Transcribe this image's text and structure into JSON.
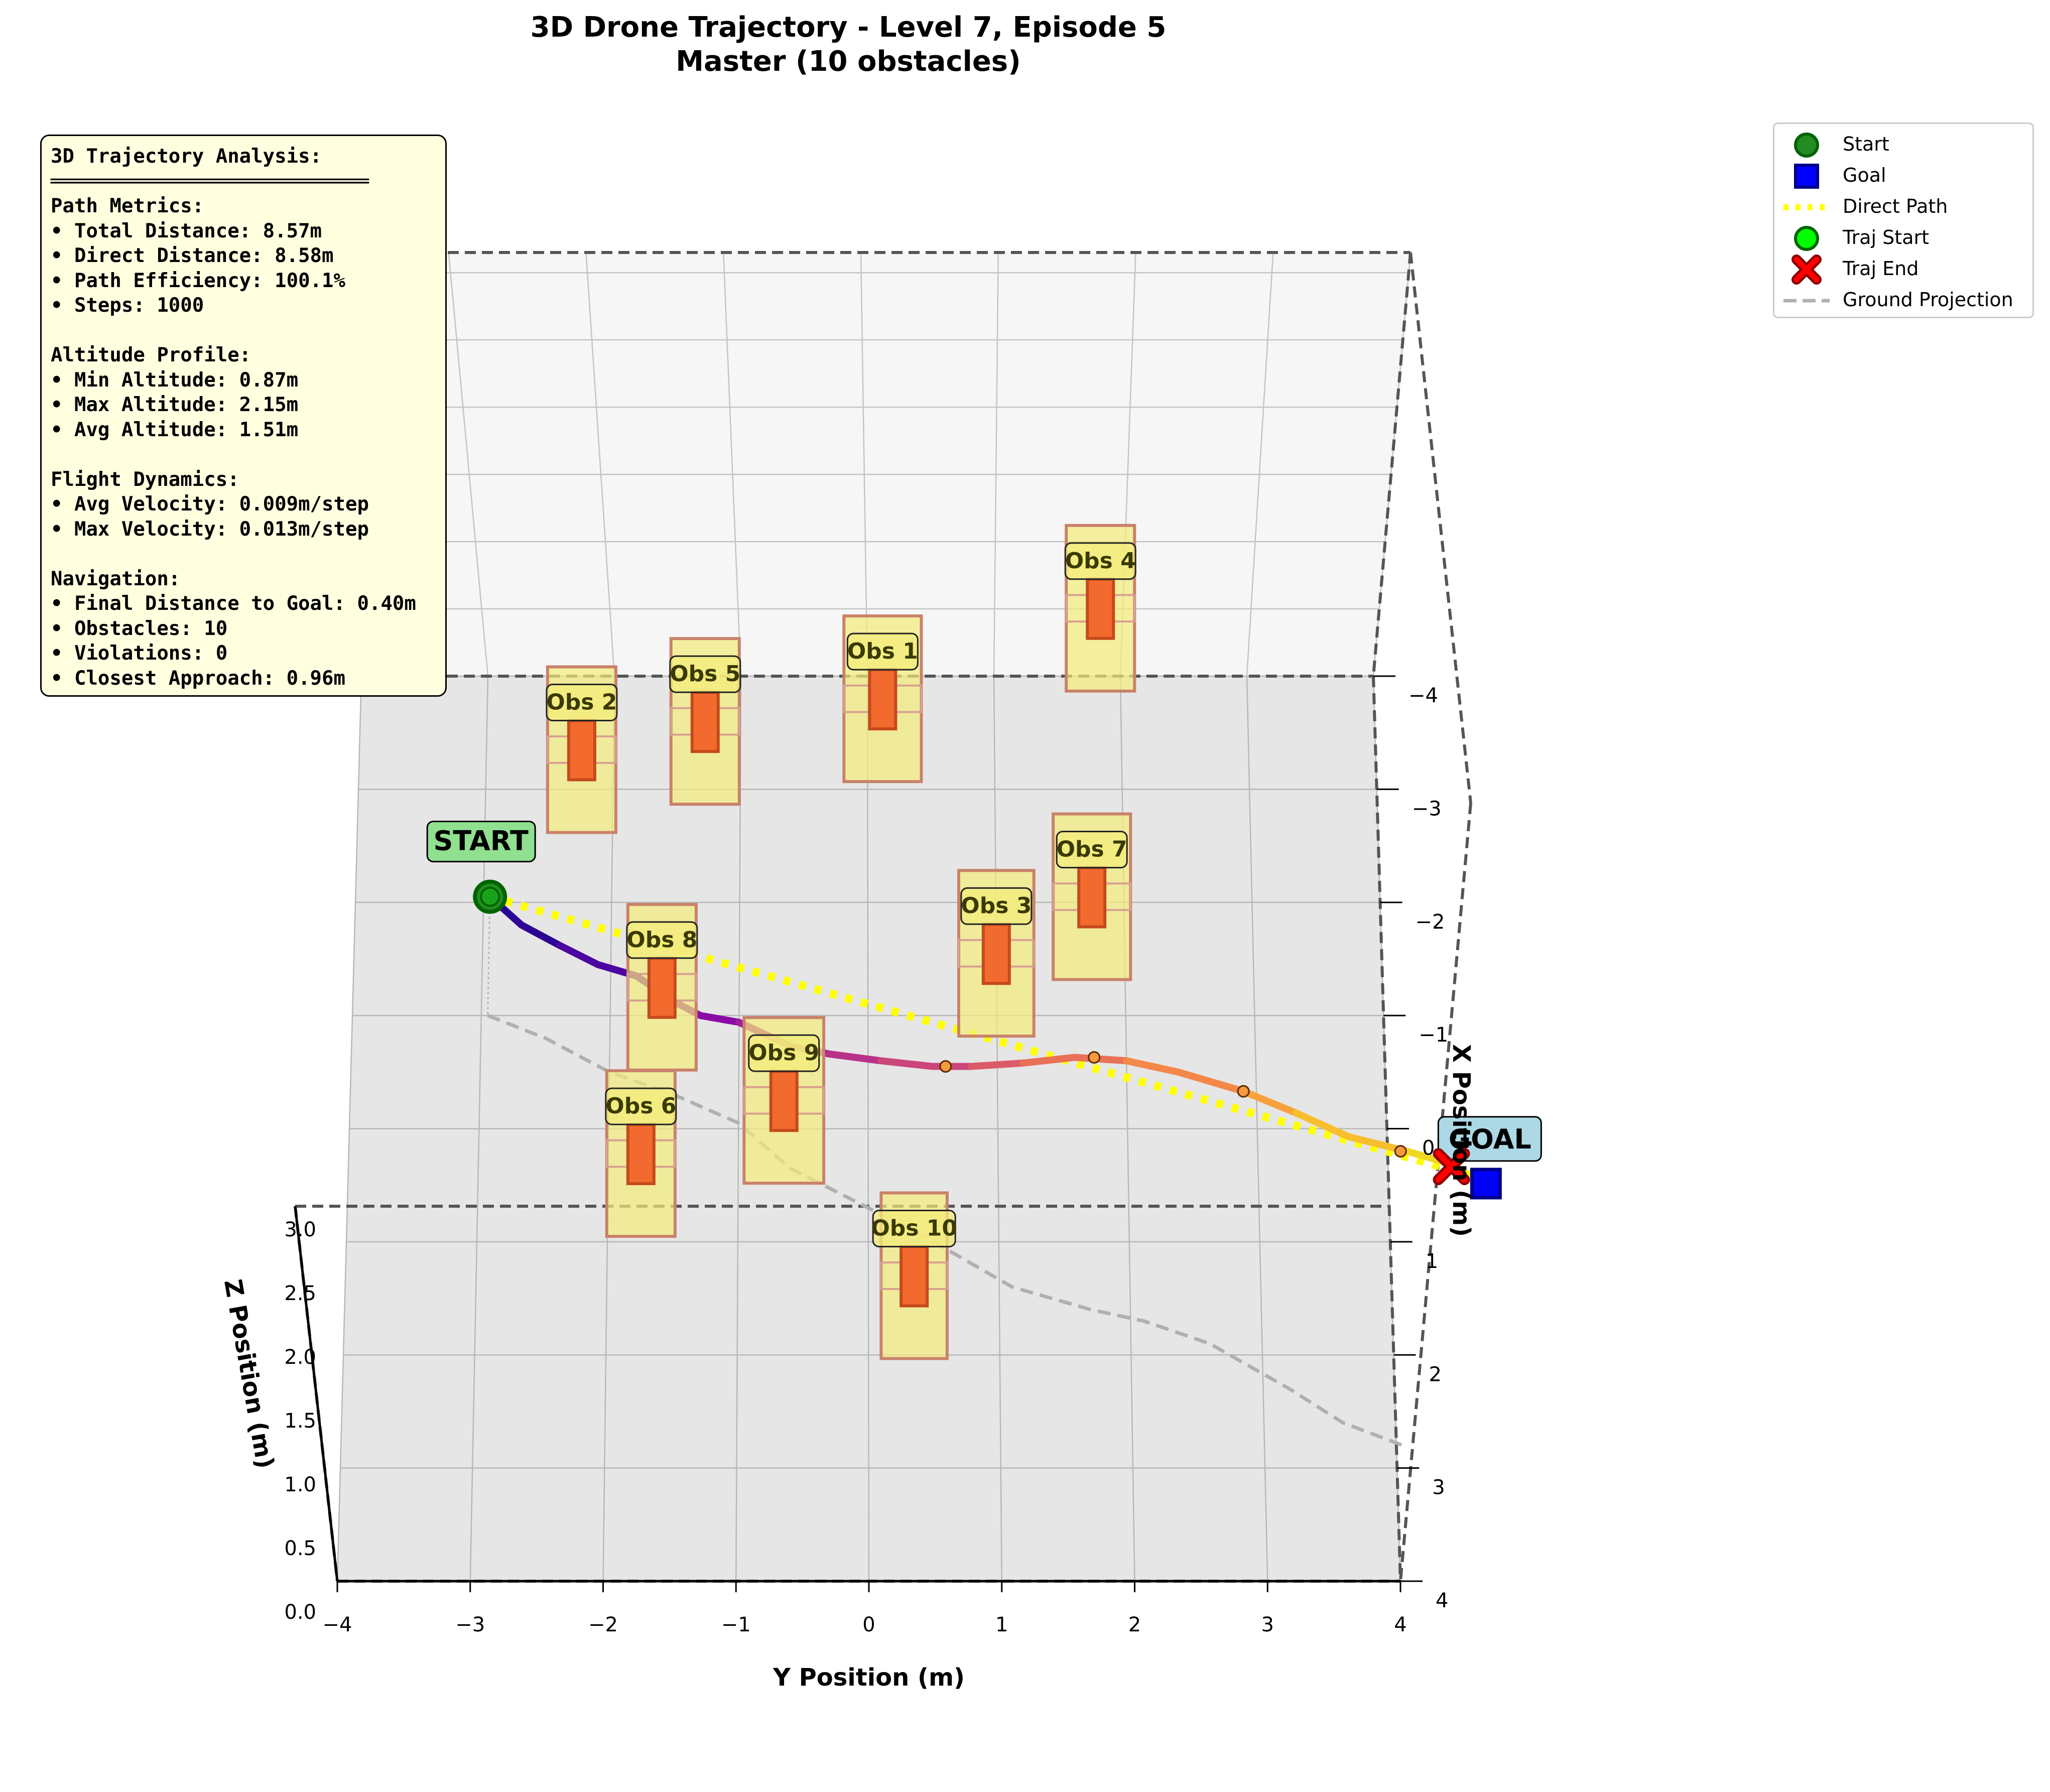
{
  "title_line1": "3D Drone Trajectory - Level 7, Episode 5",
  "title_line2": "Master (10 obstacles)",
  "chart_data": {
    "type": "3d-trajectory",
    "xlabel": "Y Position (m)",
    "ylabel": "X Position (m)",
    "zlabel": "Z Position (m)",
    "y_ticks": [
      "−4",
      "−3",
      "−2",
      "−1",
      "0",
      "1",
      "2",
      "3",
      "4"
    ],
    "x_ticks": [
      "−4",
      "−3",
      "−2",
      "−1",
      "0",
      "1",
      "2",
      "3",
      "4"
    ],
    "z_ticks": [
      "0.0",
      "0.5",
      "1.0",
      "1.5",
      "2.0",
      "2.5",
      "3.0"
    ],
    "y_range": [
      -4,
      4
    ],
    "x_range": [
      -4,
      4
    ],
    "z_range": [
      0,
      3
    ],
    "start_label": "START",
    "goal_label": "GOAL",
    "start": {
      "y": -2.95,
      "x": -2.05
    },
    "goal": {
      "y": 4.75,
      "x": 0.45
    },
    "trajectory": [
      {
        "y": -2.95,
        "x": -2.05
      },
      {
        "y": -2.7,
        "x": -1.8
      },
      {
        "y": -2.4,
        "x": -1.62
      },
      {
        "y": -2.1,
        "x": -1.45
      },
      {
        "y": -1.8,
        "x": -1.35
      },
      {
        "y": -1.5,
        "x": -1.12
      },
      {
        "y": -1.3,
        "x": -1.0
      },
      {
        "y": -1.0,
        "x": -0.94
      },
      {
        "y": -0.6,
        "x": -0.73
      },
      {
        "y": -0.3,
        "x": -0.66
      },
      {
        "y": 0.1,
        "x": -0.6
      },
      {
        "y": 0.5,
        "x": -0.55
      },
      {
        "y": 0.8,
        "x": -0.55
      },
      {
        "y": 1.2,
        "x": -0.58
      },
      {
        "y": 1.6,
        "x": -0.63
      },
      {
        "y": 2.0,
        "x": -0.6
      },
      {
        "y": 2.4,
        "x": -0.5
      },
      {
        "y": 2.9,
        "x": -0.33
      },
      {
        "y": 3.3,
        "x": -0.14
      },
      {
        "y": 3.7,
        "x": 0.07
      },
      {
        "y": 4.15,
        "x": 0.2
      },
      {
        "y": 4.45,
        "x": 0.3
      }
    ],
    "ground_projection": [
      {
        "y": -2.95,
        "x": -1.0
      },
      {
        "y": -2.5,
        "x": -0.8
      },
      {
        "y": -2.0,
        "x": -0.5
      },
      {
        "y": -1.5,
        "x": -0.3
      },
      {
        "y": -1.0,
        "x": -0.05
      },
      {
        "y": -0.6,
        "x": 0.35
      },
      {
        "y": 0.0,
        "x": 0.7
      },
      {
        "y": 0.5,
        "x": 1.0
      },
      {
        "y": 1.1,
        "x": 1.4
      },
      {
        "y": 1.7,
        "x": 1.6
      },
      {
        "y": 2.1,
        "x": 1.7
      },
      {
        "y": 2.6,
        "x": 1.9
      },
      {
        "y": 3.2,
        "x": 2.3
      },
      {
        "y": 3.6,
        "x": 2.6
      },
      {
        "y": 4.05,
        "x": 2.8
      }
    ],
    "markers": [
      {
        "y": 0.6,
        "x": -0.55
      },
      {
        "y": 1.75,
        "x": -0.63
      },
      {
        "y": 2.9,
        "x": -0.33
      },
      {
        "y": 4.1,
        "x": 0.2
      }
    ],
    "obstacles": [
      {
        "name": "Obs 1",
        "y": 0.12,
        "x": -3.8,
        "half_width": 0.34,
        "half_depth": 0.8
      },
      {
        "name": "Obs 2",
        "y": -2.25,
        "x": -3.35,
        "half_width": 0.3,
        "half_depth": 0.7
      },
      {
        "name": "Obs 3",
        "y": 1.0,
        "x": -1.55,
        "half_width": 0.33,
        "half_depth": 0.8
      },
      {
        "name": "Obs 4",
        "y": 1.85,
        "x": -4.6,
        "half_width": 0.3,
        "half_depth": 0.75
      },
      {
        "name": "Obs 5",
        "y": -1.28,
        "x": -3.6,
        "half_width": 0.3,
        "half_depth": 0.72
      },
      {
        "name": "Obs 6",
        "y": -1.75,
        "x": 0.22,
        "half_width": 0.3,
        "half_depth": 0.7
      },
      {
        "name": "Obs 7",
        "y": 1.75,
        "x": -2.05,
        "half_width": 0.34,
        "half_depth": 0.8
      },
      {
        "name": "Obs 8",
        "y": -1.6,
        "x": -1.25,
        "half_width": 0.3,
        "half_depth": 0.72
      },
      {
        "name": "Obs 9",
        "y": -0.65,
        "x": -0.25,
        "half_width": 0.35,
        "half_depth": 0.82
      },
      {
        "name": "Obs 10",
        "y": 0.35,
        "x": 1.3,
        "half_width": 0.29,
        "half_depth": 0.68
      }
    ],
    "legend": [
      {
        "label": "Start",
        "shape": "circle",
        "color": "#228B22",
        "edge": "#006400"
      },
      {
        "label": "Goal",
        "shape": "square",
        "color": "#0000ff",
        "edge": "#00008b"
      },
      {
        "label": "Direct Path",
        "shape": "dotted-line",
        "color": "#ffff00",
        "edge": "#ffff00"
      },
      {
        "label": "Traj Start",
        "shape": "circle",
        "color": "#00ff00",
        "edge": "#006400"
      },
      {
        "label": "Traj End",
        "shape": "cross",
        "color": "#ff0000",
        "edge": "#8b0000"
      },
      {
        "label": "Ground Projection",
        "shape": "dashed-line",
        "color": "#b0b0b0",
        "edge": "#b0b0b0"
      }
    ],
    "legend_placement": "upper-right-outside",
    "grid": true
  },
  "info_panel": {
    "lines": [
      "3D Trajectory Analysis:",
      "═══════════════════════════",
      "Path Metrics:",
      "• Total Distance: 8.57m",
      "• Direct Distance: 8.58m",
      "• Path Efficiency: 100.1%",
      "• Steps: 1000",
      "",
      "Altitude Profile:",
      "• Min Altitude: 0.87m",
      "• Max Altitude: 2.15m",
      "• Avg Altitude: 1.51m",
      "",
      "Flight Dynamics:",
      "• Avg Velocity: 0.009m/step",
      "• Max Velocity: 0.013m/step",
      "",
      "Navigation:",
      "• Final Distance to Goal: 0.40m",
      "• Obstacles: 10",
      "• Violations: 0",
      "• Closest Approach: 0.96m"
    ]
  }
}
